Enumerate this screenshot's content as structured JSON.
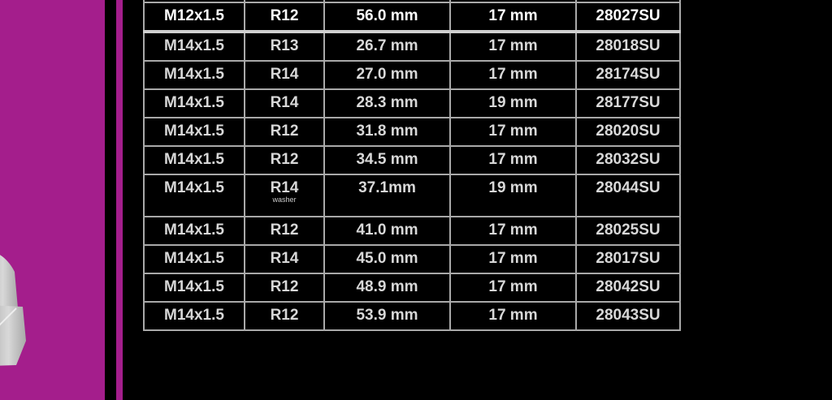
{
  "colors": {
    "accent": "#a41e8c",
    "background": "#000000",
    "grid": "#a9a9a9"
  },
  "image": {
    "icon": "acorn-nut-icon"
  },
  "table": {
    "rows": [
      {
        "thread": "M12x1.5",
        "seat": "R12",
        "length": "56.0 mm",
        "hex": "17 mm",
        "part": "28027SU",
        "highlight": true
      },
      {
        "thread": "M14x1.5",
        "seat": "R13",
        "length": "26.7 mm",
        "hex": "17 mm",
        "part": "28018SU"
      },
      {
        "thread": "M14x1.5",
        "seat": "R14",
        "length": "27.0 mm",
        "hex": "17 mm",
        "part": "28174SU"
      },
      {
        "thread": "M14x1.5",
        "seat": "R14",
        "length": "28.3 mm",
        "hex": "19 mm",
        "part": "28177SU"
      },
      {
        "thread": "M14x1.5",
        "seat": "R12",
        "length": "31.8 mm",
        "hex": "17 mm",
        "part": "28020SU"
      },
      {
        "thread": "M14x1.5",
        "seat": "R12",
        "length": "34.5 mm",
        "hex": "17 mm",
        "part": "28032SU"
      },
      {
        "thread": "M14x1.5",
        "seat": "R14",
        "seat_note": "washer",
        "length": "37.1mm",
        "hex": "19 mm",
        "part": "28044SU"
      },
      {
        "thread": "M14x1.5",
        "seat": "R12",
        "length": "41.0 mm",
        "hex": "17 mm",
        "part": "28025SU"
      },
      {
        "thread": "M14x1.5",
        "seat": "R14",
        "length": "45.0 mm",
        "hex": "17 mm",
        "part": "28017SU"
      },
      {
        "thread": "M14x1.5",
        "seat": "R12",
        "length": "48.9 mm",
        "hex": "17 mm",
        "part": "28042SU"
      },
      {
        "thread": "M14x1.5",
        "seat": "R12",
        "length": "53.9 mm",
        "hex": "17 mm",
        "part": "28043SU"
      }
    ]
  }
}
